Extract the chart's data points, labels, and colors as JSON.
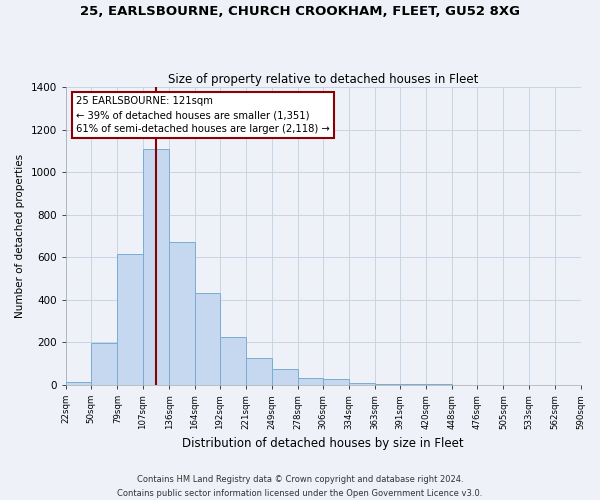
{
  "title": "25, EARLSBOURNE, CHURCH CROOKHAM, FLEET, GU52 8XG",
  "subtitle": "Size of property relative to detached houses in Fleet",
  "xlabel": "Distribution of detached houses by size in Fleet",
  "ylabel": "Number of detached properties",
  "footnote1": "Contains HM Land Registry data © Crown copyright and database right 2024.",
  "footnote2": "Contains public sector information licensed under the Open Government Licence v3.0.",
  "bar_edges": [
    22,
    50,
    79,
    107,
    136,
    164,
    192,
    221,
    249,
    278,
    306,
    334,
    363,
    391,
    420,
    448,
    476,
    505,
    533,
    562,
    590
  ],
  "bar_heights": [
    15,
    195,
    615,
    1110,
    670,
    430,
    225,
    125,
    75,
    30,
    25,
    10,
    5,
    2,
    2,
    1,
    0,
    0,
    0,
    0
  ],
  "bar_color": "#c5d8f0",
  "bar_edgecolor": "#7aadd4",
  "vline_x": 121,
  "vline_color": "#8b0000",
  "annotation_line1": "25 EARLSBOURNE: 121sqm",
  "annotation_line2": "← 39% of detached houses are smaller (1,351)",
  "annotation_line3": "61% of semi-detached houses are larger (2,118) →",
  "annotation_box_edgecolor": "#8b0000",
  "annotation_box_facecolor": "#ffffff",
  "ylim": [
    0,
    1400
  ],
  "yticks": [
    0,
    200,
    400,
    600,
    800,
    1000,
    1200,
    1400
  ],
  "tick_labels": [
    "22sqm",
    "50sqm",
    "79sqm",
    "107sqm",
    "136sqm",
    "164sqm",
    "192sqm",
    "221sqm",
    "249sqm",
    "278sqm",
    "306sqm",
    "334sqm",
    "363sqm",
    "391sqm",
    "420sqm",
    "448sqm",
    "476sqm",
    "505sqm",
    "533sqm",
    "562sqm",
    "590sqm"
  ],
  "background_color": "#eef2f8",
  "grid_color": "#c8d4e4",
  "title_fontsize": 9.5,
  "subtitle_fontsize": 8.5,
  "xlabel_fontsize": 8.5,
  "ylabel_fontsize": 7.5,
  "tick_fontsize": 6.2,
  "footnote_fontsize": 6.0
}
